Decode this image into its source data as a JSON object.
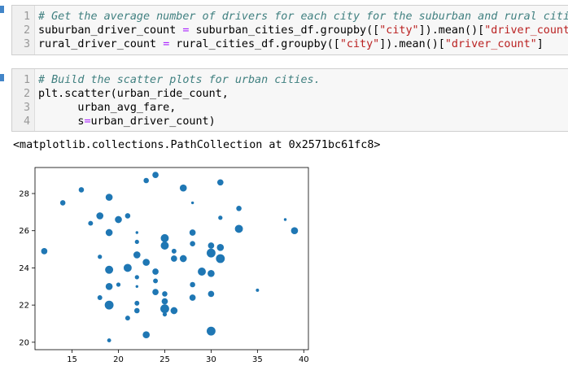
{
  "cells": [
    {
      "lines": [
        {
          "num": "1",
          "tokens": [
            {
              "t": "# Get the average number of drivers for each city for the suburban and rural cities.",
              "c": "cm-comment"
            }
          ]
        },
        {
          "num": "2",
          "tokens": [
            {
              "t": "suburban_driver_count ",
              "c": ""
            },
            {
              "t": "=",
              "c": "cm-op"
            },
            {
              "t": " suburban_cities_df.groupby([",
              "c": ""
            },
            {
              "t": "\"city\"",
              "c": "cm-str"
            },
            {
              "t": "]).mean()[",
              "c": ""
            },
            {
              "t": "\"driver_count\"",
              "c": "cm-str"
            },
            {
              "t": "]",
              "c": ""
            }
          ]
        },
        {
          "num": "3",
          "tokens": [
            {
              "t": "rural_driver_count ",
              "c": ""
            },
            {
              "t": "=",
              "c": "cm-op"
            },
            {
              "t": " rural_cities_df.groupby([",
              "c": ""
            },
            {
              "t": "\"city\"",
              "c": "cm-str"
            },
            {
              "t": "]).mean()[",
              "c": ""
            },
            {
              "t": "\"driver_count\"",
              "c": "cm-str"
            },
            {
              "t": "]",
              "c": ""
            }
          ]
        }
      ]
    },
    {
      "lines": [
        {
          "num": "1",
          "tokens": [
            {
              "t": "# Build the scatter plots for urban cities.",
              "c": "cm-comment"
            }
          ]
        },
        {
          "num": "2",
          "tokens": [
            {
              "t": "plt.scatter(urban_ride_count,",
              "c": ""
            }
          ]
        },
        {
          "num": "3",
          "tokens": [
            {
              "t": "      urban_avg_fare,",
              "c": ""
            }
          ]
        },
        {
          "num": "4",
          "tokens": [
            {
              "t": "      s",
              "c": ""
            },
            {
              "t": "=",
              "c": "cm-op"
            },
            {
              "t": "urban_driver_count)",
              "c": ""
            }
          ]
        }
      ]
    }
  ],
  "output": {
    "text": "<matplotlib.collections.PathCollection at 0x2571bc61fc8>"
  },
  "chart_data": {
    "type": "scatter",
    "title": "",
    "xlabel": "",
    "ylabel": "",
    "xlim": [
      11,
      40.5
    ],
    "ylim": [
      19.6,
      29.4
    ],
    "xticks": [
      15,
      20,
      25,
      30,
      35,
      40
    ],
    "yticks": [
      20,
      22,
      24,
      26,
      28
    ],
    "grid": false,
    "marker_color": "#1f77b4",
    "points": [
      {
        "x": 12,
        "y": 24.9,
        "s": 30
      },
      {
        "x": 14,
        "y": 27.5,
        "s": 22
      },
      {
        "x": 16,
        "y": 28.2,
        "s": 22
      },
      {
        "x": 17,
        "y": 26.4,
        "s": 18
      },
      {
        "x": 18,
        "y": 26.8,
        "s": 38
      },
      {
        "x": 18,
        "y": 24.6,
        "s": 14
      },
      {
        "x": 18,
        "y": 22.4,
        "s": 18
      },
      {
        "x": 19,
        "y": 27.8,
        "s": 38
      },
      {
        "x": 19,
        "y": 25.9,
        "s": 38
      },
      {
        "x": 19,
        "y": 23.9,
        "s": 50
      },
      {
        "x": 19,
        "y": 23.0,
        "s": 38
      },
      {
        "x": 19,
        "y": 22.0,
        "s": 60
      },
      {
        "x": 19,
        "y": 20.1,
        "s": 12
      },
      {
        "x": 20,
        "y": 26.6,
        "s": 38
      },
      {
        "x": 20,
        "y": 23.1,
        "s": 14
      },
      {
        "x": 21,
        "y": 26.8,
        "s": 22
      },
      {
        "x": 21,
        "y": 24.0,
        "s": 50
      },
      {
        "x": 21,
        "y": 21.3,
        "s": 18
      },
      {
        "x": 22,
        "y": 25.9,
        "s": 6
      },
      {
        "x": 22,
        "y": 25.4,
        "s": 14
      },
      {
        "x": 22,
        "y": 24.7,
        "s": 38
      },
      {
        "x": 22,
        "y": 23.5,
        "s": 14
      },
      {
        "x": 22,
        "y": 23.0,
        "s": 6
      },
      {
        "x": 22,
        "y": 22.1,
        "s": 18
      },
      {
        "x": 22,
        "y": 21.7,
        "s": 22
      },
      {
        "x": 23,
        "y": 28.7,
        "s": 22
      },
      {
        "x": 23,
        "y": 24.3,
        "s": 38
      },
      {
        "x": 23,
        "y": 20.4,
        "s": 38
      },
      {
        "x": 24,
        "y": 29.0,
        "s": 30
      },
      {
        "x": 24,
        "y": 23.8,
        "s": 30
      },
      {
        "x": 24,
        "y": 23.3,
        "s": 18
      },
      {
        "x": 24,
        "y": 22.7,
        "s": 30
      },
      {
        "x": 25,
        "y": 25.6,
        "s": 50
      },
      {
        "x": 25,
        "y": 25.2,
        "s": 50
      },
      {
        "x": 25,
        "y": 22.6,
        "s": 22
      },
      {
        "x": 25,
        "y": 22.2,
        "s": 30
      },
      {
        "x": 25,
        "y": 21.8,
        "s": 60
      },
      {
        "x": 25,
        "y": 21.5,
        "s": 14
      },
      {
        "x": 26,
        "y": 24.9,
        "s": 18
      },
      {
        "x": 26,
        "y": 24.5,
        "s": 30
      },
      {
        "x": 26,
        "y": 21.7,
        "s": 38
      },
      {
        "x": 27,
        "y": 28.3,
        "s": 38
      },
      {
        "x": 27,
        "y": 24.5,
        "s": 38
      },
      {
        "x": 28,
        "y": 27.5,
        "s": 6
      },
      {
        "x": 28,
        "y": 25.9,
        "s": 30
      },
      {
        "x": 28,
        "y": 25.3,
        "s": 22
      },
      {
        "x": 28,
        "y": 23.1,
        "s": 22
      },
      {
        "x": 28,
        "y": 22.4,
        "s": 30
      },
      {
        "x": 29,
        "y": 23.8,
        "s": 50
      },
      {
        "x": 30,
        "y": 25.2,
        "s": 30
      },
      {
        "x": 30,
        "y": 24.8,
        "s": 60
      },
      {
        "x": 30,
        "y": 23.7,
        "s": 38
      },
      {
        "x": 30,
        "y": 22.6,
        "s": 30
      },
      {
        "x": 30,
        "y": 20.6,
        "s": 60
      },
      {
        "x": 31,
        "y": 28.6,
        "s": 30
      },
      {
        "x": 31,
        "y": 26.7,
        "s": 14
      },
      {
        "x": 31,
        "y": 25.1,
        "s": 38
      },
      {
        "x": 31,
        "y": 24.5,
        "s": 60
      },
      {
        "x": 33,
        "y": 27.2,
        "s": 22
      },
      {
        "x": 33,
        "y": 26.1,
        "s": 50
      },
      {
        "x": 35,
        "y": 22.8,
        "s": 8
      },
      {
        "x": 38,
        "y": 26.6,
        "s": 6
      },
      {
        "x": 39,
        "y": 26.0,
        "s": 38
      }
    ]
  }
}
